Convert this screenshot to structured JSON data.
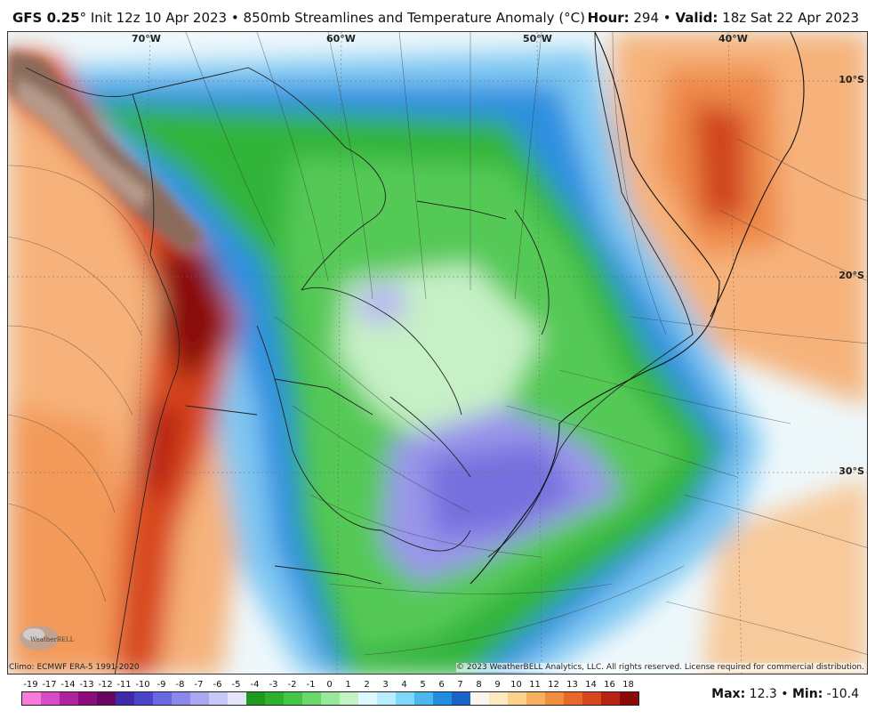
{
  "header": {
    "model": "GFS 0.25",
    "degree_mark": "°",
    "init": "Init 12z 10 Apr 2023",
    "bullet": "•",
    "product": "850mb Streamlines and Temperature Anomaly (°C)",
    "hour_label": "Hour",
    "hour_value": "294",
    "valid_label": "Valid",
    "valid_value": "18z Sat 22 Apr 2023"
  },
  "map": {
    "longitude_labels": [
      "70°W",
      "60°W",
      "50°W",
      "40°W"
    ],
    "latitude_labels": [
      "10°S",
      "20°S",
      "30°S"
    ],
    "region": "South America"
  },
  "footer": {
    "climo": "Climo: ECMWF ERA-5 1991-2020",
    "copyright": "© 2023 WeatherBELL Analytics, LLC. All rights reserved. License required for commercial distribution.",
    "logo_text": "WeatherBELL"
  },
  "colorbar": {
    "labels": [
      "-19",
      "-17",
      "-14",
      "-13",
      "-12",
      "-11",
      "-10",
      "-9",
      "-8",
      "-7",
      "-6",
      "-5",
      "-4",
      "-3",
      "-2",
      "-1",
      "0",
      "1",
      "2",
      "3",
      "4",
      "5",
      "6",
      "7",
      "8",
      "9",
      "10",
      "11",
      "12",
      "13",
      "14",
      "16",
      "18"
    ],
    "colors": [
      "#f77bd8",
      "#d84ac7",
      "#b0219d",
      "#8c0c7c",
      "#6a0562",
      "#3f2aa8",
      "#4c44c8",
      "#6a68e0",
      "#8a88ea",
      "#aaa8f0",
      "#c8c8f6",
      "#e6e6fa",
      "#1f9a1f",
      "#2cb22c",
      "#45c745",
      "#6ad86a",
      "#98e898",
      "#c5f2c5",
      "#dff7ff",
      "#b8ecff",
      "#7fd8f7",
      "#4ab8ef",
      "#1f8ee0",
      "#1a64c8",
      "#f7f7f0",
      "#fde9c0",
      "#fbd28b",
      "#f7b062",
      "#f08e3e",
      "#e8682a",
      "#d8461d",
      "#b82214",
      "#8a0a0a"
    ],
    "units": "°C"
  },
  "stats": {
    "max_label": "Max",
    "max_value": "12.3",
    "min_label": "Min",
    "min_value": "-10.4",
    "separator": "•"
  }
}
